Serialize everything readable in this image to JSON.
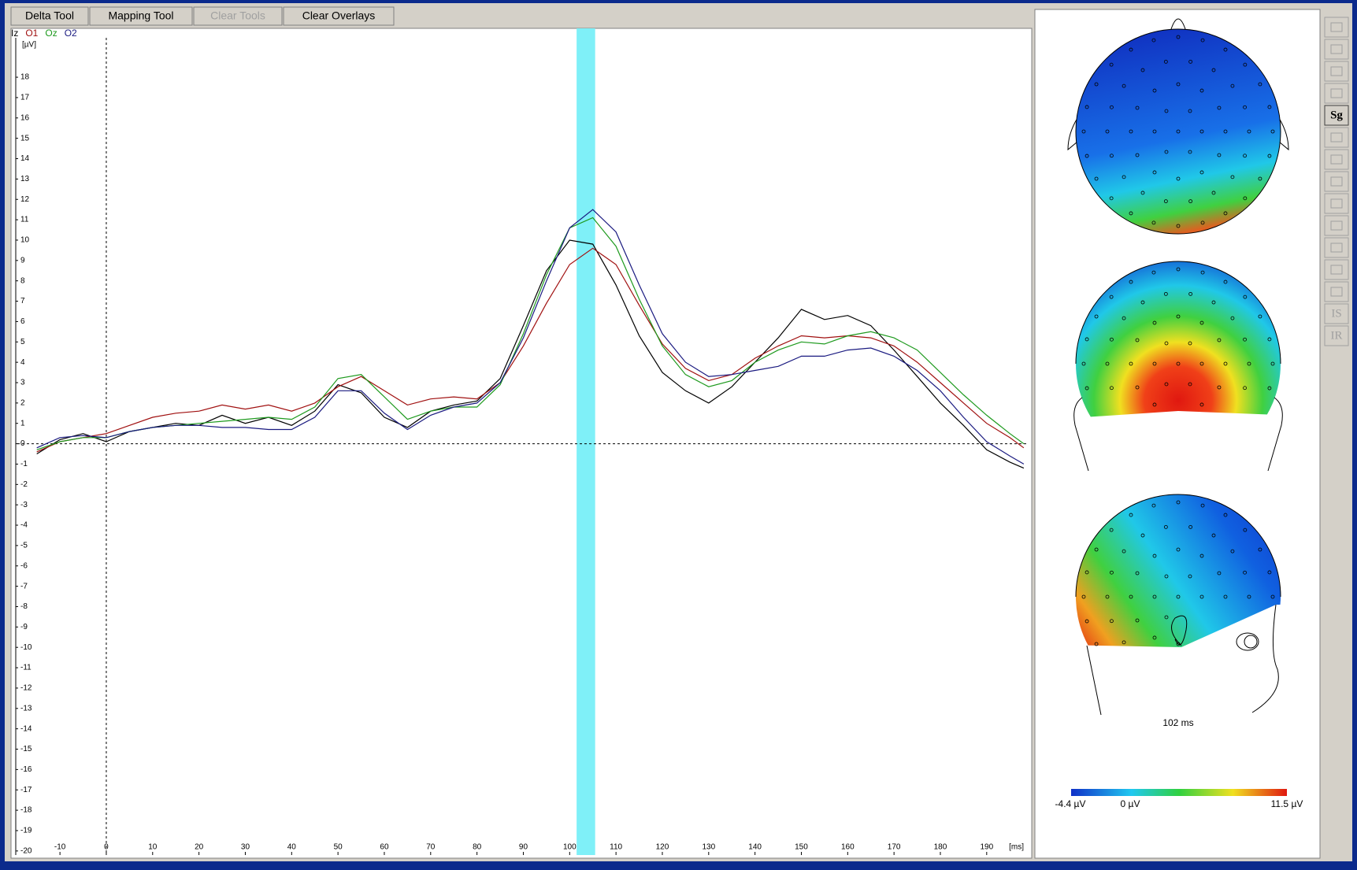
{
  "toolbar": {
    "buttons": [
      {
        "label": "Delta Tool",
        "enabled": true
      },
      {
        "label": "Mapping Tool",
        "enabled": true
      },
      {
        "label": "Clear Tools",
        "enabled": false
      },
      {
        "label": "Clear Overlays",
        "enabled": true
      }
    ]
  },
  "chart_data": {
    "type": "line",
    "ylabel": "[µV]",
    "xlabel": "[ms]",
    "x": [
      -15,
      -10,
      -5,
      0,
      5,
      10,
      15,
      20,
      25,
      30,
      35,
      40,
      45,
      50,
      55,
      60,
      65,
      70,
      75,
      80,
      85,
      90,
      95,
      100,
      105,
      110,
      115,
      120,
      125,
      130,
      135,
      140,
      145,
      150,
      155,
      160,
      165,
      170,
      175,
      180,
      185,
      190,
      195,
      198
    ],
    "series": [
      {
        "name": "Iz",
        "color": "#000000",
        "values": [
          -0.5,
          0.2,
          0.5,
          0.1,
          0.6,
          0.8,
          1.0,
          0.9,
          1.4,
          1.0,
          1.3,
          0.9,
          1.6,
          2.9,
          2.5,
          1.3,
          0.8,
          1.6,
          1.9,
          2.1,
          3.2,
          5.8,
          8.5,
          10.0,
          9.8,
          7.8,
          5.3,
          3.5,
          2.6,
          2.0,
          2.8,
          4.0,
          5.2,
          6.6,
          6.1,
          6.3,
          5.8,
          4.6,
          3.3,
          2.0,
          0.9,
          -0.3,
          -0.9,
          -1.2
        ]
      },
      {
        "name": "O1",
        "color": "#a01010",
        "values": [
          -0.4,
          0.1,
          0.3,
          0.5,
          0.9,
          1.3,
          1.5,
          1.6,
          1.9,
          1.7,
          1.9,
          1.6,
          2.0,
          2.8,
          3.3,
          2.6,
          1.9,
          2.2,
          2.3,
          2.2,
          3.0,
          4.8,
          6.9,
          8.8,
          9.6,
          8.8,
          6.8,
          4.9,
          3.7,
          3.1,
          3.4,
          4.2,
          4.8,
          5.3,
          5.2,
          5.3,
          5.2,
          4.8,
          4.0,
          3.0,
          2.0,
          1.0,
          0.3,
          -0.2
        ]
      },
      {
        "name": "Oz",
        "color": "#1e9a1e",
        "values": [
          -0.3,
          0.1,
          0.3,
          0.3,
          0.6,
          0.8,
          0.9,
          1.0,
          1.1,
          1.2,
          1.3,
          1.2,
          1.8,
          3.2,
          3.4,
          2.3,
          1.2,
          1.6,
          1.8,
          1.8,
          2.9,
          5.4,
          8.3,
          10.6,
          11.1,
          9.7,
          7.1,
          4.8,
          3.4,
          2.8,
          3.1,
          4.0,
          4.6,
          5.0,
          4.9,
          5.3,
          5.5,
          5.2,
          4.6,
          3.5,
          2.4,
          1.4,
          0.5,
          0.0
        ]
      },
      {
        "name": "O2",
        "color": "#1a1a80",
        "values": [
          -0.2,
          0.3,
          0.4,
          0.3,
          0.6,
          0.8,
          0.9,
          0.9,
          0.8,
          0.8,
          0.7,
          0.7,
          1.3,
          2.6,
          2.6,
          1.5,
          0.7,
          1.4,
          1.8,
          2.0,
          3.0,
          5.2,
          8.0,
          10.6,
          11.5,
          10.4,
          7.8,
          5.4,
          4.0,
          3.3,
          3.4,
          3.6,
          3.8,
          4.3,
          4.3,
          4.6,
          4.7,
          4.3,
          3.6,
          2.6,
          1.3,
          0.1,
          -0.6,
          -1.0
        ]
      }
    ],
    "cursor_range": [
      101.5,
      105.5
    ],
    "cursor_color": "#7ff0f8",
    "xlim": [
      -19.2,
      198.7
    ],
    "ylim": [
      -20.2,
      20.4
    ],
    "xticks": [
      -10,
      0,
      10,
      20,
      30,
      40,
      50,
      60,
      70,
      80,
      90,
      100,
      110,
      120,
      130,
      140,
      150,
      160,
      170,
      180,
      190
    ],
    "yticks": [
      -20,
      -19,
      -18,
      -17,
      -16,
      -15,
      -14,
      -13,
      -12,
      -11,
      -10,
      -9,
      -8,
      -7,
      -6,
      -5,
      -4,
      -3,
      -2,
      -1,
      0,
      1,
      2,
      3,
      4,
      5,
      6,
      7,
      8,
      9,
      10,
      11,
      12,
      13,
      14,
      15,
      16,
      17,
      18
    ]
  },
  "map": {
    "time_label": "102 ms",
    "colorbar": {
      "min_label": "-4.4 µV",
      "zero_label": "0 µV",
      "max_label": "11.5 µV"
    }
  },
  "side_toolbar": {
    "labels": [
      "Sg",
      "IS",
      "IR"
    ]
  }
}
